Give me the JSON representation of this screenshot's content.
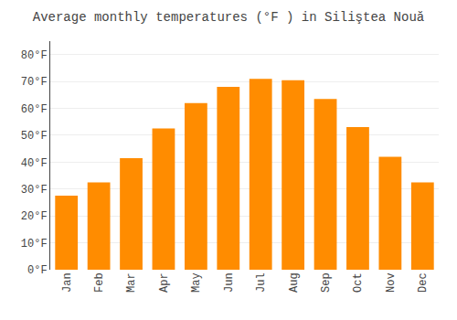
{
  "chart_data": {
    "type": "bar",
    "title": "Average monthly temperatures (°F ) in Siliştea Nouă",
    "categories": [
      "Jan",
      "Feb",
      "Mar",
      "Apr",
      "May",
      "Jun",
      "Jul",
      "Aug",
      "Sep",
      "Oct",
      "Nov",
      "Dec"
    ],
    "values": [
      27.5,
      32.5,
      41.5,
      52.5,
      62.0,
      68.0,
      71.0,
      70.5,
      63.5,
      53.0,
      42.0,
      32.5
    ],
    "color": "#FF8C00",
    "ylim": [
      0,
      85
    ],
    "yticks": [
      {
        "value": 0,
        "label": "0°F"
      },
      {
        "value": 10,
        "label": "10°F"
      },
      {
        "value": 20,
        "label": "20°F"
      },
      {
        "value": 30,
        "label": "30°F"
      },
      {
        "value": 40,
        "label": "40°F"
      },
      {
        "value": 50,
        "label": "50°F"
      },
      {
        "value": 60,
        "label": "60°F"
      },
      {
        "value": 70,
        "label": "70°F"
      },
      {
        "value": 80,
        "label": "80°F"
      }
    ],
    "grid": true
  }
}
